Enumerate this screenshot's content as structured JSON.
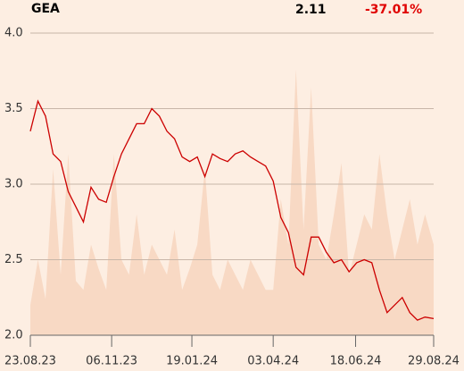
{
  "chart_data": {
    "type": "line",
    "title": "GEA",
    "last_value": "2.11",
    "change": "-37.01%",
    "change_color": "#e00000",
    "color": "#cc0000",
    "volume_color": "#f8d9c4",
    "grid": true,
    "x": [
      "2023-08-23",
      "2023-08-30",
      "2023-09-06",
      "2023-09-13",
      "2023-09-20",
      "2023-09-27",
      "2023-10-04",
      "2023-10-11",
      "2023-10-18",
      "2023-10-25",
      "2023-11-01",
      "2023-11-08",
      "2023-11-15",
      "2023-11-22",
      "2023-11-29",
      "2023-12-06",
      "2023-12-13",
      "2023-12-20",
      "2023-12-27",
      "2024-01-03",
      "2024-01-10",
      "2024-01-17",
      "2024-01-24",
      "2024-01-31",
      "2024-02-07",
      "2024-02-14",
      "2024-02-21",
      "2024-02-28",
      "2024-03-06",
      "2024-03-13",
      "2024-03-20",
      "2024-03-27",
      "2024-04-03",
      "2024-04-10",
      "2024-04-17",
      "2024-04-24",
      "2024-05-01",
      "2024-05-08",
      "2024-05-15",
      "2024-05-22",
      "2024-05-29",
      "2024-06-05",
      "2024-06-12",
      "2024-06-19",
      "2024-06-26",
      "2024-07-03",
      "2024-07-10",
      "2024-07-17",
      "2024-07-24",
      "2024-07-31",
      "2024-08-07",
      "2024-08-14",
      "2024-08-21",
      "2024-08-29"
    ],
    "values": [
      3.35,
      3.55,
      3.45,
      3.2,
      3.15,
      2.95,
      2.85,
      2.75,
      2.98,
      2.9,
      2.88,
      3.05,
      3.2,
      3.3,
      3.4,
      3.4,
      3.5,
      3.45,
      3.35,
      3.3,
      3.18,
      3.15,
      3.18,
      3.05,
      3.2,
      3.17,
      3.15,
      3.2,
      3.22,
      3.18,
      3.15,
      3.12,
      3.02,
      2.78,
      2.68,
      2.45,
      2.4,
      2.65,
      2.65,
      2.55,
      2.48,
      2.5,
      2.42,
      2.48,
      2.5,
      2.48,
      2.3,
      2.15,
      2.2,
      2.25,
      2.15,
      2.1,
      2.12,
      2.11
    ],
    "volume": [
      10,
      25,
      12,
      55,
      20,
      60,
      18,
      15,
      30,
      22,
      15,
      60,
      25,
      20,
      40,
      20,
      30,
      25,
      20,
      35,
      15,
      22,
      30,
      55,
      20,
      15,
      25,
      20,
      15,
      25,
      20,
      15,
      15,
      45,
      30,
      88,
      35,
      82,
      30,
      25,
      40,
      57,
      20,
      30,
      40,
      35,
      60,
      40,
      25,
      35,
      45,
      30,
      40,
      30
    ],
    "vlim": [
      0,
      100
    ],
    "ylim": [
      2.0,
      4.0
    ],
    "yticks": [
      {
        "value": 2.0,
        "label": "2.0"
      },
      {
        "value": 2.5,
        "label": "2.5"
      },
      {
        "value": 3.0,
        "label": "3.0"
      },
      {
        "value": 3.5,
        "label": "3.5"
      },
      {
        "value": 4.0,
        "label": "4.0"
      }
    ],
    "xlim": [
      "2023-08-23",
      "2024-08-29"
    ],
    "xticks": [
      {
        "value": "2023-08-23",
        "label": "23.08.23"
      },
      {
        "value": "2023-11-06",
        "label": "06.11.23"
      },
      {
        "value": "2024-01-19",
        "label": "19.01.24"
      },
      {
        "value": "2024-04-03",
        "label": "03.04.24"
      },
      {
        "value": "2024-06-18",
        "label": "18.06.24"
      },
      {
        "value": "2024-08-29",
        "label": "29.08.24"
      }
    ]
  }
}
